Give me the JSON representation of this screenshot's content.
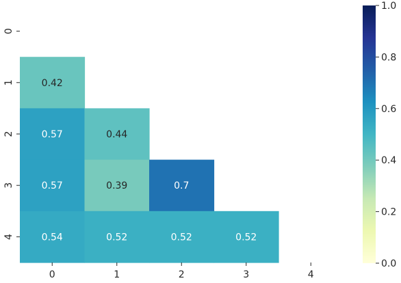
{
  "chart_data": {
    "type": "heatmap",
    "title": "",
    "xlabel": "",
    "ylabel": "",
    "x_categories": [
      "0",
      "1",
      "2",
      "3",
      "4"
    ],
    "y_categories": [
      "0",
      "1",
      "2",
      "3",
      "4"
    ],
    "mask": "upper-triangle-including-diagonal",
    "cells": [
      {
        "row": 1,
        "col": 0,
        "value": 0.42,
        "label": "0.42"
      },
      {
        "row": 2,
        "col": 0,
        "value": 0.57,
        "label": "0.57"
      },
      {
        "row": 2,
        "col": 1,
        "value": 0.44,
        "label": "0.44"
      },
      {
        "row": 3,
        "col": 0,
        "value": 0.57,
        "label": "0.57"
      },
      {
        "row": 3,
        "col": 1,
        "value": 0.39,
        "label": "0.39"
      },
      {
        "row": 3,
        "col": 2,
        "value": 0.7,
        "label": "0.7"
      },
      {
        "row": 4,
        "col": 0,
        "value": 0.54,
        "label": "0.54"
      },
      {
        "row": 4,
        "col": 1,
        "value": 0.52,
        "label": "0.52"
      },
      {
        "row": 4,
        "col": 2,
        "value": 0.52,
        "label": "0.52"
      },
      {
        "row": 4,
        "col": 3,
        "value": 0.52,
        "label": "0.52"
      }
    ],
    "colorbar": {
      "colormap": "YlGnBu",
      "range": [
        0.0,
        1.0
      ],
      "ticks": [
        "0.0",
        "0.2",
        "0.4",
        "0.6",
        "0.8",
        "1.0"
      ]
    },
    "colors": {
      "dark_text": "#262626",
      "light_text": "#ffffff",
      "tick": "#262626"
    }
  }
}
